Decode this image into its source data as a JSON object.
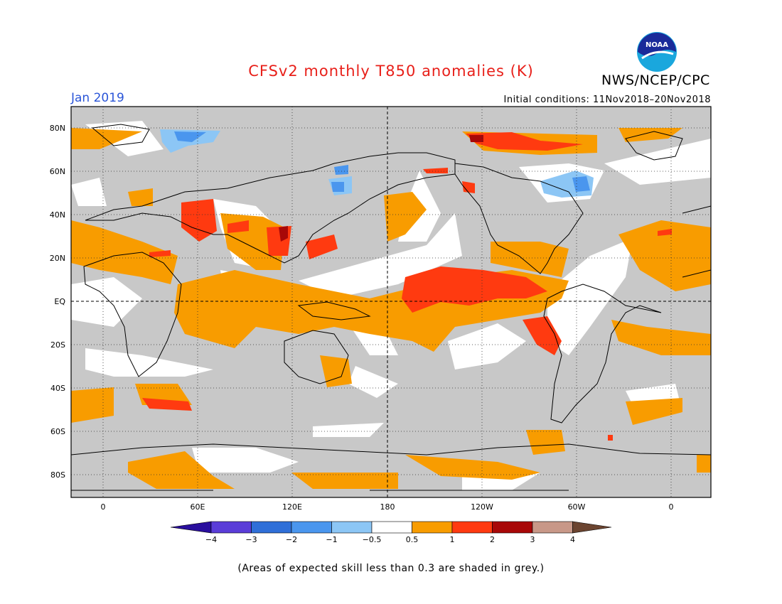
{
  "header": {
    "title": "CFSv2 monthly T850 anomalies (K)",
    "agency": "NWS/NCEP/CPC",
    "logo_text": "NOAA",
    "period": "Jan 2019",
    "initial_conditions": "Initial conditions: 11Nov2018–20Nov2018"
  },
  "map": {
    "lat_labels": [
      "80N",
      "60N",
      "40N",
      "20N",
      "EQ",
      "20S",
      "40S",
      "60S",
      "80S"
    ],
    "lon_labels": [
      "0",
      "60E",
      "120E",
      "180",
      "120W",
      "60W",
      "0"
    ],
    "background_color": "#c8c8c8",
    "grid": "dotted",
    "zero_lines": [
      "equator",
      "dateline"
    ]
  },
  "legend": {
    "colors": [
      "#2a0f9e",
      "#5a3dd8",
      "#2f6fd8",
      "#4a96ee",
      "#8cc6f5",
      "#ffffff",
      "#f89c00",
      "#ff3a10",
      "#a80808",
      "#c89888",
      "#6b4430"
    ],
    "labels": [
      "−4",
      "−3",
      "−2",
      "−1",
      "−0.5",
      "0.5",
      "1",
      "2",
      "3",
      "4"
    ]
  },
  "footnote": "(Areas of expected skill less than 0.3 are shaded in grey.)"
}
